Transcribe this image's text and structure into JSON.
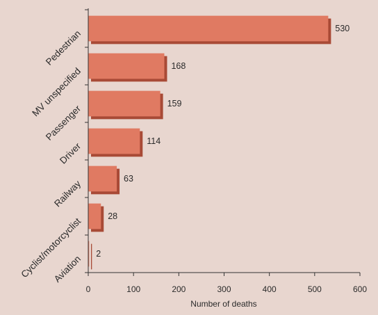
{
  "chart_data": {
    "type": "bar",
    "orientation": "horizontal",
    "categories": [
      "Pedestrian",
      "MV unspecified",
      "Passenger",
      "Driver",
      "Railway",
      "Cyclist/motorcyclist",
      "Aviation"
    ],
    "values": [
      530,
      168,
      159,
      114,
      63,
      28,
      2
    ],
    "value_labels": [
      "530",
      "168",
      "159",
      "114",
      "63",
      "28",
      "2"
    ],
    "xlabel": "Number of deaths",
    "ylabel": "",
    "xlim": [
      0,
      600
    ],
    "xticks": [
      0,
      100,
      200,
      300,
      400,
      500,
      600
    ],
    "xtick_labels": [
      "0",
      "100",
      "200",
      "300",
      "400",
      "500",
      "600"
    ],
    "grid": false,
    "bar_color": "#e07a62",
    "bar_shadow_color": "#a84a36",
    "background_color": "#e8d6cf"
  }
}
